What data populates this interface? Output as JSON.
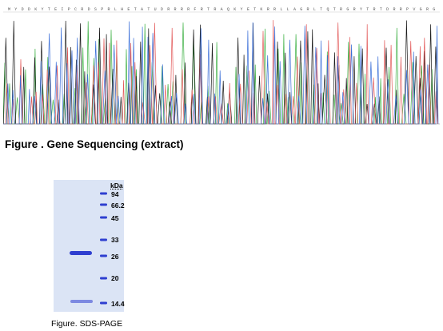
{
  "top_figure": {
    "sequence_header": "M Y D D K Y T E I P C R D S P R L H E T A T U D R R R R F R T R A Q K Y E T K R R L L A G R L T Q T R G R Y T R T D R R P V G R G R G Y",
    "caption": "Figure . Gene Sequencing (extract)",
    "trace_colors": [
      "#3cb043",
      "#1a1a1a",
      "#e35b5b",
      "#3b6fd8"
    ]
  },
  "gel_figure": {
    "unit_label": "kDa",
    "markers": [
      "94",
      "66.2",
      "45",
      "33",
      "26",
      "20",
      "14.4"
    ],
    "caption": "Figure. SDS-PAGE",
    "band_color": "#2f3fd0",
    "background_color": "#dbe4f5"
  }
}
